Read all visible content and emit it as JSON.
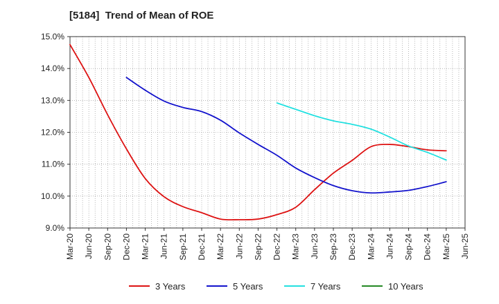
{
  "chart_data": {
    "type": "line",
    "title": "[5184]  Trend of Mean of ROE",
    "xlabel": "",
    "ylabel": "",
    "ylim": [
      9.0,
      15.0
    ],
    "yticks": [
      "9.0%",
      "10.0%",
      "11.0%",
      "12.0%",
      "13.0%",
      "14.0%",
      "15.0%"
    ],
    "categories": [
      "Mar-20",
      "Jun-20",
      "Sep-20",
      "Dec-20",
      "Mar-21",
      "Jun-21",
      "Sep-21",
      "Dec-21",
      "Mar-22",
      "Jun-22",
      "Sep-22",
      "Dec-22",
      "Mar-23",
      "Jun-23",
      "Sep-23",
      "Dec-23",
      "Mar-24",
      "Jun-24",
      "Sep-24",
      "Dec-24",
      "Mar-25",
      "Jun-25"
    ],
    "grid": true,
    "legend_position": "bottom",
    "series": [
      {
        "name": "3 Years",
        "color": "#dd1111",
        "values": [
          14.75,
          13.72,
          12.55,
          11.48,
          10.55,
          9.98,
          9.67,
          9.48,
          9.28,
          9.26,
          9.28,
          9.42,
          9.65,
          10.2,
          10.72,
          11.12,
          11.55,
          11.62,
          11.55,
          11.45,
          11.42,
          null
        ]
      },
      {
        "name": "5 Years",
        "color": "#1111cc",
        "values": [
          null,
          null,
          null,
          13.72,
          13.32,
          12.98,
          12.78,
          12.65,
          12.38,
          11.98,
          11.62,
          11.28,
          10.88,
          10.58,
          10.33,
          10.17,
          10.1,
          10.13,
          10.18,
          10.3,
          10.45,
          null
        ]
      },
      {
        "name": "7 Years",
        "color": "#22e0e0",
        "values": [
          null,
          null,
          null,
          null,
          null,
          null,
          null,
          null,
          null,
          null,
          null,
          12.92,
          12.72,
          12.52,
          12.36,
          12.25,
          12.1,
          11.85,
          11.57,
          11.37,
          11.13,
          null
        ]
      },
      {
        "name": "10 Years",
        "color": "#228822",
        "values": [
          null,
          null,
          null,
          null,
          null,
          null,
          null,
          null,
          null,
          null,
          null,
          null,
          null,
          null,
          null,
          null,
          null,
          null,
          null,
          null,
          null,
          null
        ]
      }
    ]
  }
}
